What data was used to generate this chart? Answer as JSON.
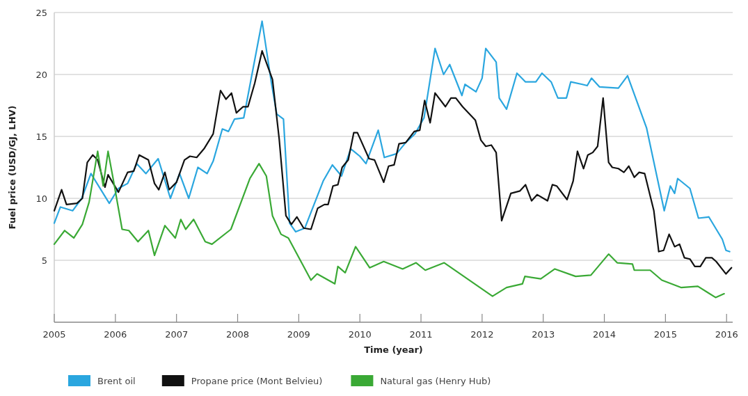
{
  "chart_data": {
    "type": "line",
    "xlabel": "Time (year)",
    "ylabel": "Fuel price (USD/GJ, LHV)",
    "xlim": [
      2005,
      2016.1
    ],
    "ylim": [
      0,
      25
    ],
    "xticks": [
      2005,
      2006,
      2007,
      2008,
      2009,
      2010,
      2011,
      2012,
      2013,
      2014,
      2015,
      2016
    ],
    "yticks": [
      5,
      10,
      15,
      20,
      25
    ],
    "grid": "y",
    "legend": "bottom",
    "line_style": "solid",
    "series": [
      {
        "name": "Brent oil",
        "color": "#2aa6df",
        "x": [
          2005.0,
          2005.1,
          2005.3,
          2005.45,
          2005.6,
          2005.9,
          2006.05,
          2006.2,
          2006.35,
          2006.5,
          2006.7,
          2006.9,
          2007.05,
          2007.2,
          2007.35,
          2007.5,
          2007.6,
          2007.75,
          2007.85,
          2007.95,
          2008.1,
          2008.4,
          2008.55,
          2008.64,
          2008.75,
          2008.85,
          2008.95,
          2009.1,
          2009.4,
          2009.55,
          2009.7,
          2009.85,
          2010.0,
          2010.1,
          2010.3,
          2010.4,
          2010.6,
          2010.75,
          2010.9,
          2011.05,
          2011.23,
          2011.37,
          2011.47,
          2011.67,
          2011.72,
          2011.9,
          2012.0,
          2012.06,
          2012.23,
          2012.28,
          2012.4,
          2012.57,
          2012.71,
          2012.88,
          2012.98,
          2013.13,
          2013.24,
          2013.38,
          2013.45,
          2013.64,
          2013.72,
          2013.79,
          2013.92,
          2014.23,
          2014.38,
          2014.69,
          2014.98,
          2015.08,
          2015.15,
          2015.2,
          2015.4,
          2015.54,
          2015.71,
          2015.93,
          2015.99,
          2016.05
        ],
        "values": [
          8.0,
          9.3,
          9.0,
          10.0,
          12.0,
          9.6,
          10.8,
          11.2,
          12.8,
          12.0,
          13.2,
          10.0,
          12.0,
          10.0,
          12.5,
          12.0,
          13.0,
          15.6,
          15.4,
          16.4,
          16.5,
          24.3,
          19.4,
          16.8,
          16.4,
          8.0,
          7.3,
          7.6,
          11.4,
          12.7,
          11.8,
          14.0,
          13.4,
          12.8,
          15.5,
          13.3,
          13.6,
          14.5,
          15.2,
          16.5,
          22.1,
          20.0,
          20.8,
          18.3,
          19.2,
          18.6,
          19.7,
          22.1,
          21.0,
          18.1,
          17.2,
          20.1,
          19.4,
          19.4,
          20.1,
          19.4,
          18.1,
          18.1,
          19.4,
          19.2,
          19.1,
          19.7,
          19.0,
          18.9,
          19.9,
          15.7,
          9.0,
          11.0,
          10.4,
          11.6,
          10.8,
          8.4,
          8.5,
          6.7,
          5.8,
          5.7
        ]
      },
      {
        "name": "Propane price (Mont Belvieu)",
        "color": "#111111",
        "x": [
          2005.0,
          2005.12,
          2005.2,
          2005.37,
          2005.46,
          2005.54,
          2005.63,
          2005.71,
          2005.83,
          2005.88,
          2006.05,
          2006.2,
          2006.3,
          2006.39,
          2006.54,
          2006.64,
          2006.71,
          2006.81,
          2006.88,
          2007.0,
          2007.13,
          2007.22,
          2007.33,
          2007.45,
          2007.6,
          2007.72,
          2007.81,
          2007.9,
          2007.98,
          2008.09,
          2008.17,
          2008.28,
          2008.4,
          2008.57,
          2008.68,
          2008.79,
          2008.88,
          2008.97,
          2009.08,
          2009.2,
          2009.31,
          2009.42,
          2009.48,
          2009.56,
          2009.64,
          2009.71,
          2009.81,
          2009.9,
          2009.96,
          2010.15,
          2010.24,
          2010.39,
          2010.47,
          2010.56,
          2010.64,
          2010.75,
          2010.89,
          2010.98,
          2011.06,
          2011.15,
          2011.23,
          2011.4,
          2011.49,
          2011.57,
          2011.68,
          2011.89,
          2011.98,
          2012.06,
          2012.15,
          2012.23,
          2012.32,
          2012.47,
          2012.62,
          2012.71,
          2012.81,
          2012.9,
          2013.07,
          2013.15,
          2013.22,
          2013.39,
          2013.49,
          2013.56,
          2013.66,
          2013.73,
          2013.81,
          2013.89,
          2013.98,
          2014.07,
          2014.13,
          2014.23,
          2014.32,
          2014.4,
          2014.49,
          2014.57,
          2014.66,
          2014.81,
          2014.89,
          2014.97,
          2015.06,
          2015.15,
          2015.23,
          2015.31,
          2015.4,
          2015.48,
          2015.57,
          2015.66,
          2015.76,
          2015.83,
          2015.99,
          2016.08
        ],
        "values": [
          9.0,
          10.7,
          9.5,
          9.6,
          10.0,
          12.9,
          13.5,
          13.1,
          10.9,
          11.9,
          10.5,
          12.1,
          12.2,
          13.5,
          13.1,
          11.2,
          10.7,
          12.1,
          10.7,
          11.3,
          13.1,
          13.4,
          13.3,
          14.0,
          15.2,
          18.7,
          18.0,
          18.5,
          16.9,
          17.4,
          17.4,
          19.3,
          21.9,
          19.6,
          14.8,
          8.6,
          7.9,
          8.5,
          7.6,
          7.5,
          9.2,
          9.5,
          9.5,
          11.0,
          11.1,
          12.5,
          13.1,
          15.3,
          15.3,
          13.2,
          13.1,
          11.3,
          12.6,
          12.7,
          14.4,
          14.5,
          15.4,
          15.5,
          17.9,
          16.1,
          18.5,
          17.4,
          18.1,
          18.1,
          17.4,
          16.3,
          14.7,
          14.2,
          14.3,
          13.7,
          8.2,
          10.4,
          10.6,
          11.1,
          9.8,
          10.3,
          9.8,
          11.1,
          11.0,
          9.9,
          11.4,
          13.8,
          12.4,
          13.5,
          13.7,
          14.2,
          18.1,
          12.9,
          12.5,
          12.4,
          12.1,
          12.6,
          11.7,
          12.1,
          12.0,
          9.0,
          5.7,
          5.8,
          7.1,
          6.1,
          6.3,
          5.2,
          5.1,
          4.5,
          4.5,
          5.2,
          5.2,
          4.9,
          3.9,
          4.4
        ]
      },
      {
        "name": "Natural gas (Henry Hub)",
        "color": "#3aa935",
        "x": [
          2005.0,
          2005.17,
          2005.32,
          2005.46,
          2005.57,
          2005.71,
          2005.8,
          2005.88,
          2005.97,
          2006.11,
          2006.22,
          2006.37,
          2006.54,
          2006.64,
          2006.81,
          2006.98,
          2007.07,
          2007.15,
          2007.28,
          2007.47,
          2007.58,
          2007.89,
          2008.2,
          2008.35,
          2008.47,
          2008.57,
          2008.71,
          2008.83,
          2009.2,
          2009.3,
          2009.59,
          2009.64,
          2009.76,
          2009.93,
          2010.16,
          2010.39,
          2010.7,
          2010.92,
          2011.07,
          2011.38,
          2012.17,
          2012.4,
          2012.66,
          2012.7,
          2012.96,
          2013.19,
          2013.53,
          2013.78,
          2014.07,
          2014.21,
          2014.46,
          2014.49,
          2014.75,
          2014.94,
          2015.26,
          2015.53,
          2015.82,
          2015.96
        ],
        "values": [
          6.3,
          7.4,
          6.8,
          7.9,
          9.7,
          13.8,
          11.0,
          13.8,
          11.4,
          7.5,
          7.4,
          6.5,
          7.4,
          5.4,
          7.8,
          6.8,
          8.3,
          7.5,
          8.3,
          6.5,
          6.3,
          7.5,
          11.6,
          12.8,
          11.8,
          8.6,
          7.1,
          6.8,
          3.4,
          3.9,
          3.1,
          4.5,
          4.0,
          6.1,
          4.4,
          4.9,
          4.3,
          4.8,
          4.2,
          4.8,
          2.1,
          2.8,
          3.1,
          3.7,
          3.5,
          4.3,
          3.7,
          3.8,
          5.5,
          4.8,
          4.7,
          4.2,
          4.2,
          3.4,
          2.8,
          2.9,
          2.0,
          2.3
        ]
      }
    ]
  }
}
